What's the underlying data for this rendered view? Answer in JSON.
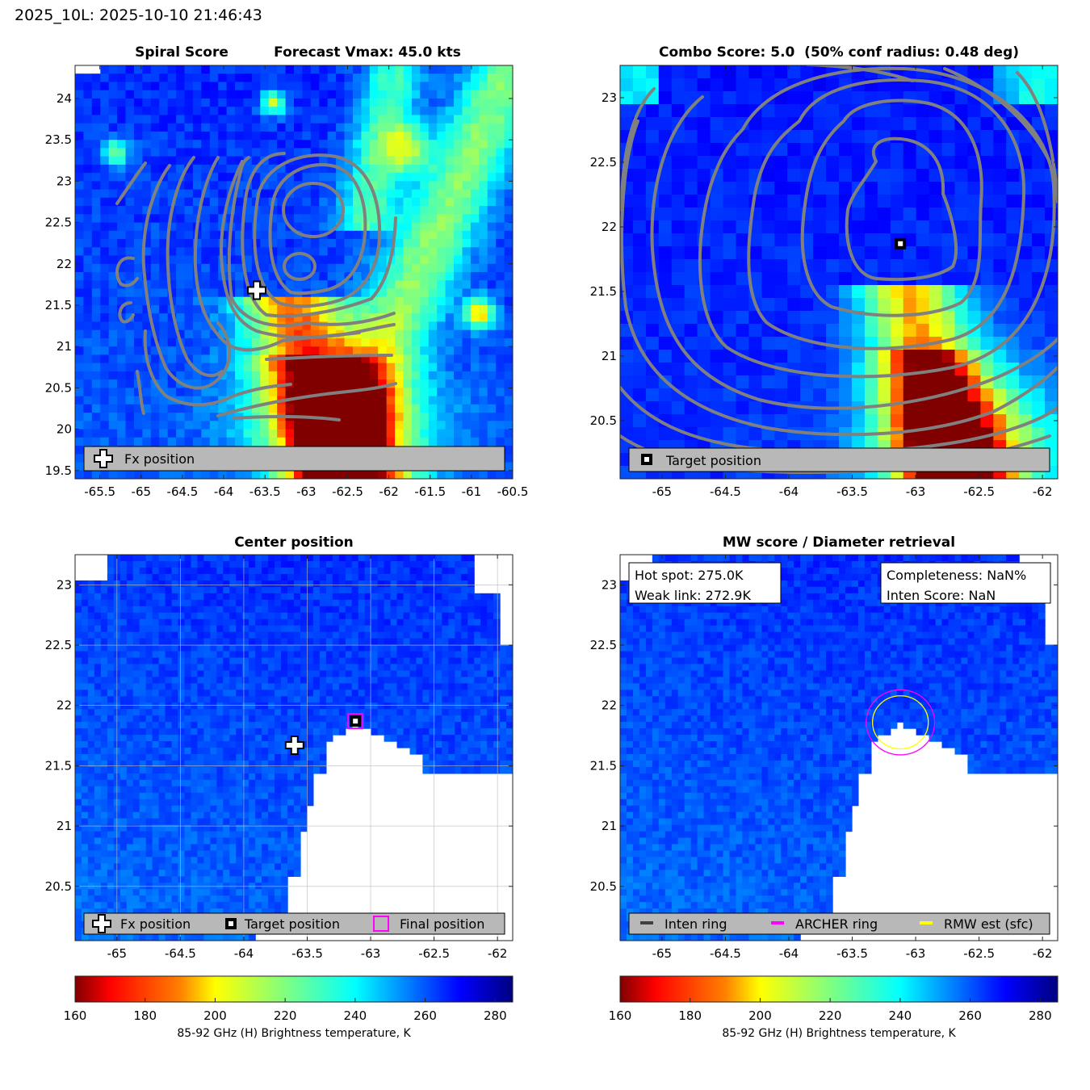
{
  "figure": {
    "suptitle": "2025_10L: 2025-10-10 21:46:43"
  },
  "colorscale": {
    "stops": [
      [
        160,
        "#800000"
      ],
      [
        170,
        "#ff0000"
      ],
      [
        190,
        "#ff8000"
      ],
      [
        200,
        "#ffff00"
      ],
      [
        220,
        "#80ff80"
      ],
      [
        240,
        "#00ffff"
      ],
      [
        255,
        "#0080ff"
      ],
      [
        270,
        "#0000ff"
      ],
      [
        285,
        "#000080"
      ]
    ],
    "colors": {
      "contour": "#808080",
      "magenta": "#ff00ff",
      "yellow": "#ffff00",
      "legend_bg": "#b8b8b8"
    }
  },
  "chart_data": [
    {
      "id": "spiral",
      "type": "heatmap",
      "title_left": "Spiral Score",
      "title_right": "Forecast Vmax: 45.0 kts",
      "xlim": [
        -65.8,
        -60.5
      ],
      "ylim": [
        19.4,
        24.4
      ],
      "xticks": [
        -65.5,
        -65,
        -64.5,
        -64,
        -63.5,
        -63,
        -62.5,
        -62,
        -61.5,
        -61,
        -60.5
      ],
      "yticks": [
        19.5,
        20,
        20.5,
        21,
        21.5,
        22,
        22.5,
        23,
        23.5,
        24
      ],
      "fx_position": {
        "lon": -63.6,
        "lat": 21.68
      },
      "legend": [
        "Fx position"
      ]
    },
    {
      "id": "combo",
      "type": "heatmap",
      "title": "Combo Score: 5.0  (50% conf radius: 0.48 deg)",
      "xlim": [
        -65.33,
        -61.88
      ],
      "ylim": [
        20.05,
        23.25
      ],
      "xticks": [
        -65,
        -64.5,
        -64,
        -63.5,
        -63,
        -62.5,
        -62
      ],
      "yticks": [
        20.5,
        21,
        21.5,
        22,
        22.5,
        23
      ],
      "target_position": {
        "lon": -63.12,
        "lat": 21.87
      },
      "legend": [
        "Target position"
      ]
    },
    {
      "id": "center",
      "type": "heatmap",
      "title": "Center position",
      "xlim": [
        -65.33,
        -61.88
      ],
      "ylim": [
        20.05,
        23.25
      ],
      "xticks": [
        -65,
        -64.5,
        -64,
        -63.5,
        -63,
        -62.5,
        -62
      ],
      "yticks": [
        20.5,
        21,
        21.5,
        22,
        22.5,
        23
      ],
      "fx_position": {
        "lon": -63.6,
        "lat": 21.67
      },
      "target_position": {
        "lon": -63.12,
        "lat": 21.87
      },
      "final_position": {
        "lon": -63.12,
        "lat": 21.87
      },
      "legend": [
        "Fx position",
        "Target position",
        "Final position"
      ]
    },
    {
      "id": "mw",
      "type": "heatmap",
      "title": "MW score / Diameter retrieval",
      "xlim": [
        -65.33,
        -61.88
      ],
      "ylim": [
        20.05,
        23.25
      ],
      "xticks": [
        -65,
        -64.5,
        -64,
        -63.5,
        -63,
        -62.5,
        -62
      ],
      "yticks": [
        20.5,
        21,
        21.5,
        22,
        22.5,
        23
      ],
      "info_left": [
        "Hot spot: 275.0K",
        "Weak link: 272.9K"
      ],
      "info_right": [
        "Completeness: NaN%",
        "Inten Score: NaN"
      ],
      "archer_ring": {
        "lon": -63.12,
        "lat": 21.86,
        "radius_deg": 0.27
      },
      "rmw_ring": {
        "lon": -63.12,
        "lat": 21.86,
        "radius_deg": 0.22
      },
      "legend": [
        "Inten ring",
        "ARCHER ring",
        "RMW est (sfc)"
      ]
    }
  ],
  "colorbars": [
    {
      "ticks": [
        160,
        180,
        200,
        220,
        240,
        260,
        280
      ],
      "range": [
        160,
        285
      ],
      "label": "85-92 GHz (H) Brightness temperature, K"
    },
    {
      "ticks": [
        160,
        180,
        200,
        220,
        240,
        260,
        280
      ],
      "range": [
        160,
        285
      ],
      "label": "85-92 GHz (H) Brightness temperature, K"
    }
  ]
}
